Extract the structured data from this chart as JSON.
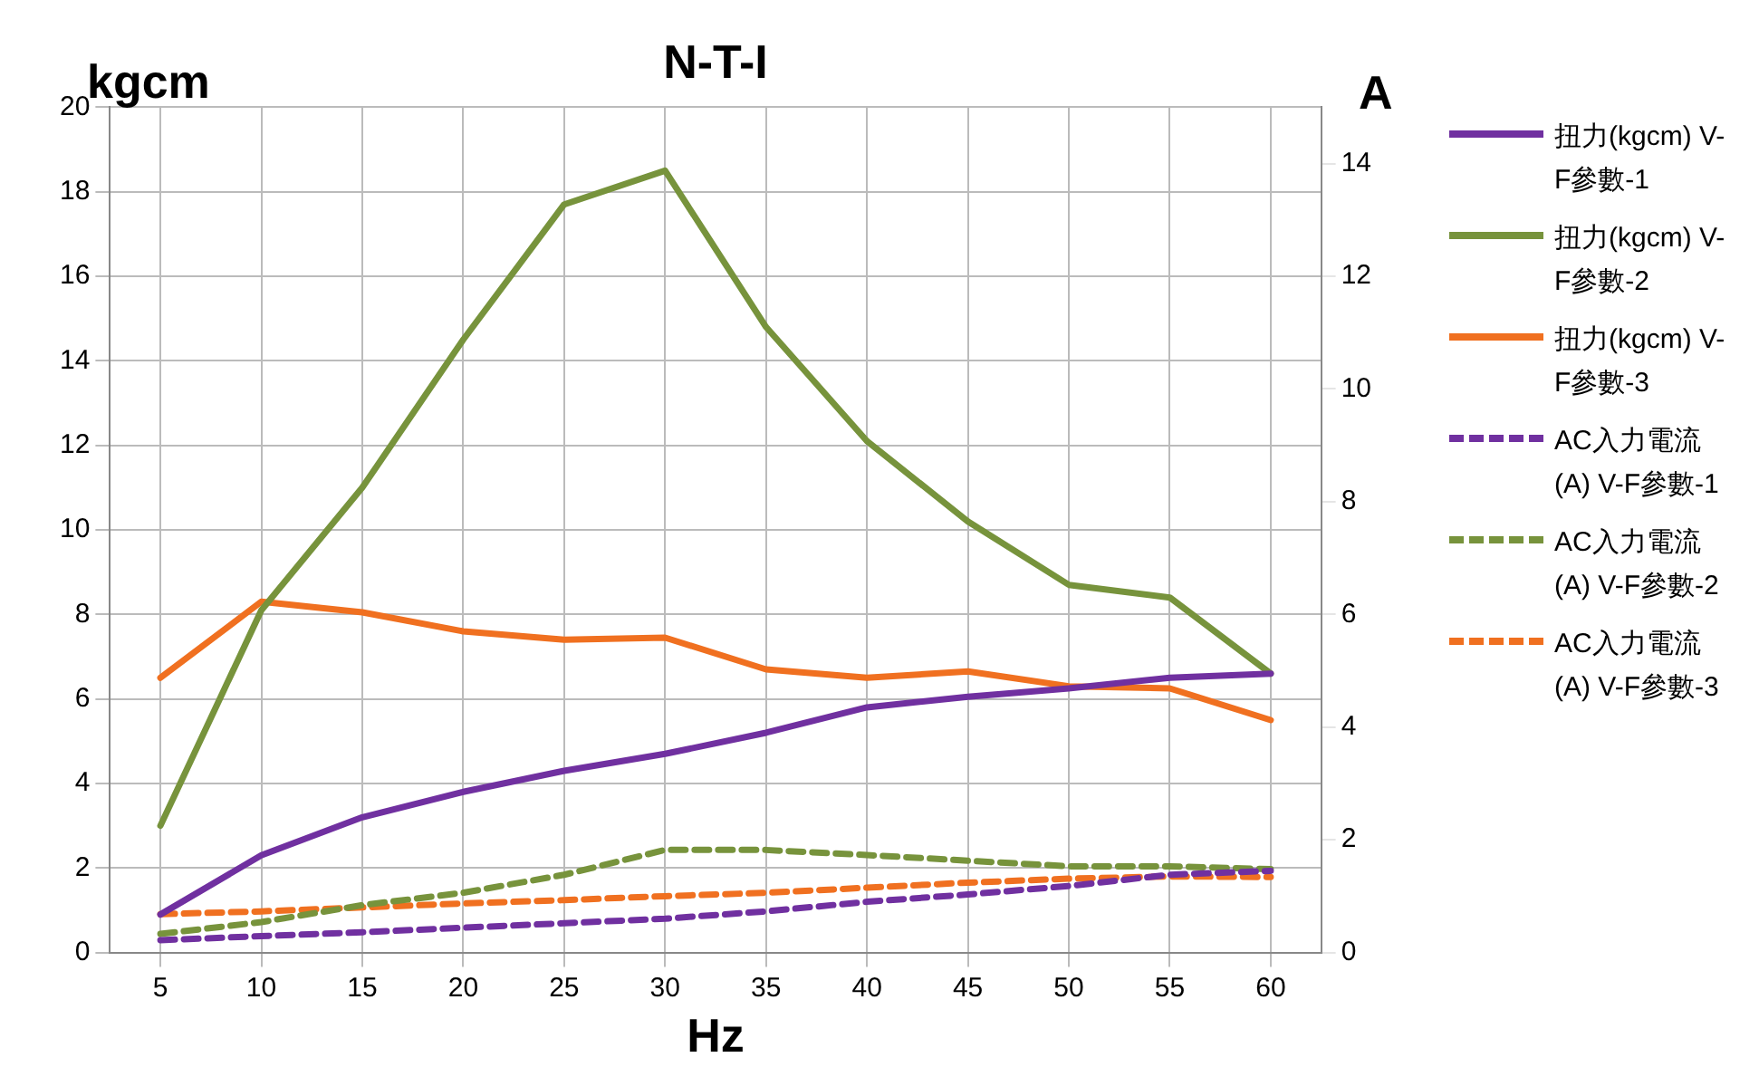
{
  "chart_data": {
    "type": "line",
    "title": "N-T-I",
    "xlabel": "Hz",
    "ylabel": "kgcm",
    "y2label": "A",
    "categories": [
      "5",
      "10",
      "15",
      "20",
      "25",
      "30",
      "35",
      "40",
      "45",
      "50",
      "55",
      "60"
    ],
    "ylim": [
      0,
      20
    ],
    "yticks": [
      0,
      2,
      4,
      6,
      8,
      10,
      12,
      14,
      16,
      18,
      20
    ],
    "y2lim": [
      0,
      15
    ],
    "y2ticks": [
      0,
      2,
      4,
      6,
      8,
      10,
      12,
      14
    ],
    "grid": true,
    "legend": "right",
    "marker": "none",
    "series": [
      {
        "name": "扭力(kgcm) V-F參數-1",
        "color": "#7030a0",
        "line_style": "solid",
        "values": [
          0.9,
          2.3,
          3.2,
          3.8,
          4.3,
          4.7,
          5.2,
          5.8,
          6.05,
          6.25,
          6.5,
          6.6
        ]
      },
      {
        "name": "扭力(kgcm) V-F參數-2",
        "color": "#77933c",
        "line_style": "solid",
        "values": [
          3.0,
          8.1,
          11.0,
          14.5,
          17.7,
          18.5,
          14.8,
          12.1,
          10.2,
          8.7,
          8.4,
          6.6
        ]
      },
      {
        "name": "扭力(kgcm) V-F參數-3",
        "color": "#f07020",
        "line_style": "solid",
        "values": [
          6.5,
          8.3,
          8.05,
          7.6,
          7.4,
          7.45,
          6.7,
          6.5,
          6.65,
          6.3,
          6.25,
          5.5
        ]
      },
      {
        "name": "AC入力電流(A) V-F參數-1",
        "color": "#7030a0",
        "line_style": "dashed",
        "axis": "y2",
        "values": [
          0.22,
          0.29,
          0.36,
          0.44,
          0.52,
          0.6,
          0.73,
          0.9,
          1.03,
          1.18,
          1.38,
          1.45
        ]
      },
      {
        "name": "AC入力電流(A) V-F參數-2",
        "color": "#77933c",
        "line_style": "dashed",
        "axis": "y2",
        "values": [
          0.33,
          0.54,
          0.84,
          1.06,
          1.38,
          1.82,
          1.82,
          1.73,
          1.63,
          1.53,
          1.53,
          1.48
        ]
      },
      {
        "name": "AC入力電流(A) V-F參數-3",
        "color": "#f07020",
        "line_style": "dashed",
        "axis": "y2",
        "values": [
          0.68,
          0.73,
          0.8,
          0.87,
          0.93,
          1.0,
          1.06,
          1.15,
          1.24,
          1.31,
          1.35,
          1.34
        ]
      }
    ]
  }
}
